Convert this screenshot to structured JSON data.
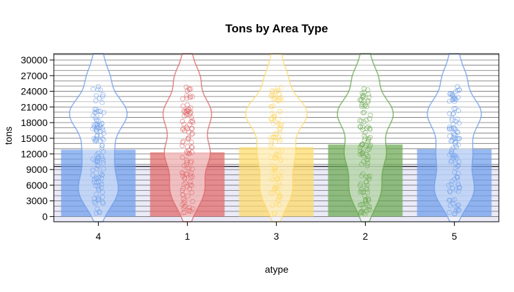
{
  "chart_data": {
    "type": "bar",
    "title": "Tons by Area Type",
    "xlabel": "atype",
    "ylabel": "tons",
    "categories": [
      "4",
      "1",
      "3",
      "2",
      "5"
    ],
    "values": [
      12800,
      12300,
      13300,
      13800,
      12900
    ],
    "colors": [
      "#6d9eeb",
      "#e06666",
      "#ffd966",
      "#6aa84f",
      "#6d9eeb"
    ],
    "ylim": [
      -1000,
      31200
    ],
    "yticks": [
      0,
      3000,
      6000,
      9000,
      12000,
      15000,
      18000,
      21000,
      24000,
      27000,
      30000
    ],
    "grid": true,
    "overlay": [
      "jittered points",
      "violin density"
    ]
  }
}
